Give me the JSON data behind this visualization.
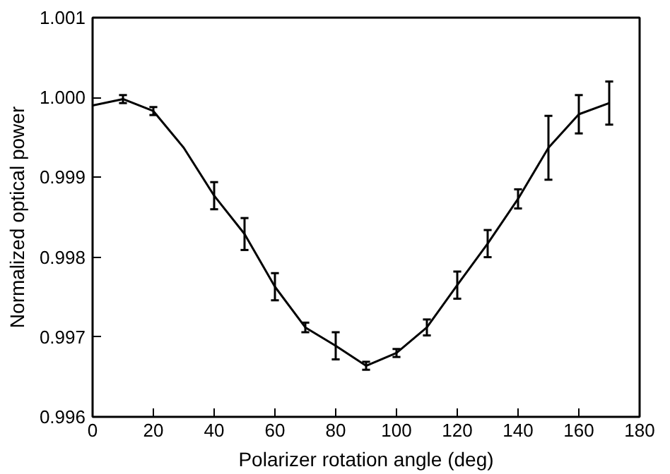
{
  "chart_data": {
    "type": "line",
    "xlabel": "Polarizer rotation angle (deg)",
    "ylabel": "Normalized optical power",
    "x": [
      0,
      10,
      20,
      30,
      40,
      50,
      60,
      70,
      80,
      90,
      100,
      110,
      120,
      130,
      140,
      150,
      160,
      170
    ],
    "series": [
      {
        "color": "#000000",
        "values": [
          0.9999,
          0.99998,
          0.99983,
          0.99937,
          0.99877,
          0.99829,
          0.99763,
          0.99712,
          0.99689,
          0.99664,
          0.9968,
          0.99712,
          0.99765,
          0.99817,
          0.99873,
          0.99937,
          0.99979,
          0.99993
        ],
        "errors": [
          null,
          5e-05,
          5e-05,
          null,
          0.00017,
          0.0002,
          0.00017,
          6e-05,
          0.00017,
          5e-05,
          5e-05,
          0.0001,
          0.00017,
          0.00017,
          0.00012,
          0.0004,
          0.00024,
          0.00027
        ]
      }
    ],
    "xlim": [
      0,
      180
    ],
    "xticks": [
      0,
      20,
      40,
      60,
      80,
      100,
      120,
      140,
      160,
      180
    ],
    "ylim": [
      0.996,
      1.001
    ],
    "yticks": [
      {
        "value": 0.996,
        "label": "0.996"
      },
      {
        "value": 0.997,
        "label": "0.997"
      },
      {
        "value": 0.998,
        "label": "0.998"
      },
      {
        "value": 0.999,
        "label": "0.999"
      },
      {
        "value": 1.0,
        "label": "1.000"
      },
      {
        "value": 1.001,
        "label": "1.001"
      }
    ],
    "grid": false,
    "marker": "none",
    "line_style": "solid"
  }
}
